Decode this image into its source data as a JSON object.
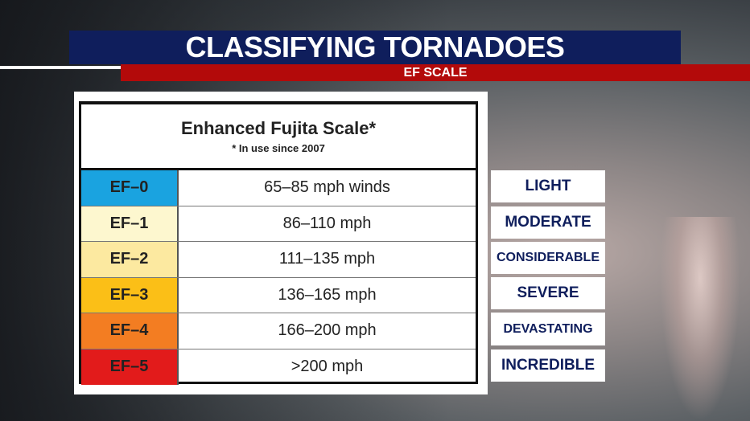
{
  "title": "CLASSIFYING TORNADOES",
  "subtitle": "EF SCALE",
  "scale": {
    "heading": "Enhanced Fujita Scale*",
    "note": "* In use since 2007",
    "rows": [
      {
        "category": "EF–0",
        "wind": "65–85 mph winds",
        "color": "#1aa3e0"
      },
      {
        "category": "EF–1",
        "wind": "86–110 mph",
        "color": "#fdf7cf"
      },
      {
        "category": "EF–2",
        "wind": "111–135 mph",
        "color": "#fce9a0"
      },
      {
        "category": "EF–3",
        "wind": "136–165 mph",
        "color": "#fbbf17"
      },
      {
        "category": "EF–4",
        "wind": "166–200 mph",
        "color": "#f37d22"
      },
      {
        "category": "EF–5",
        "wind": ">200 mph",
        "color": "#e21b1b"
      }
    ]
  },
  "descriptors": [
    "LIGHT",
    "MODERATE",
    "CONSIDERABLE",
    "SEVERE",
    "DEVASTATING",
    "INCREDIBLE"
  ],
  "colors": {
    "title_bar": "#0f1e5c",
    "subtitle_bar": "#b30a0a"
  }
}
